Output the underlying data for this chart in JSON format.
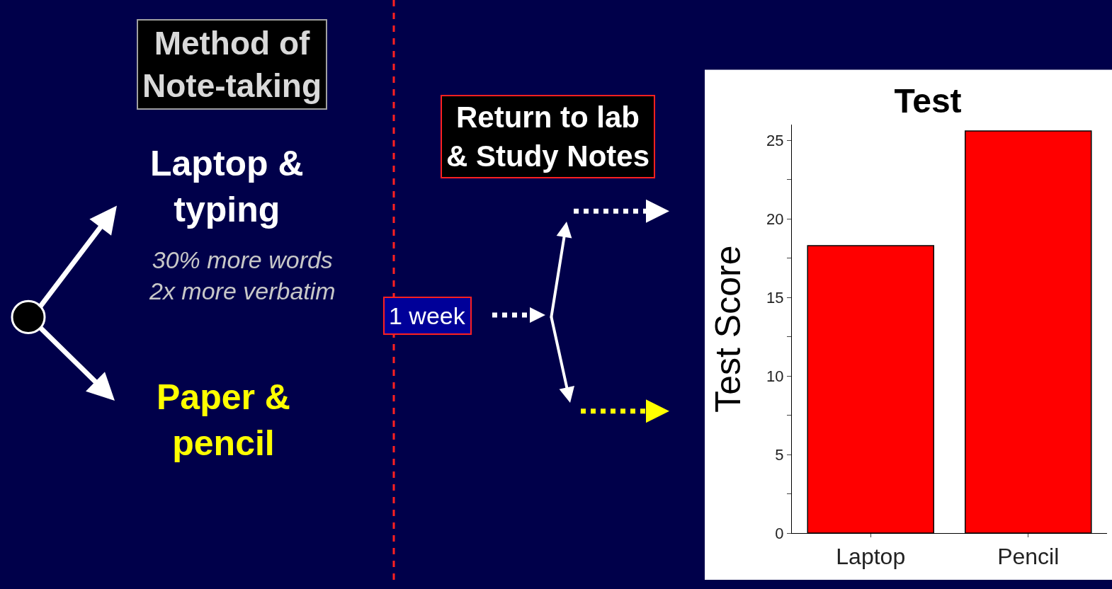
{
  "chart_data": {
    "type": "bar",
    "title": "Test",
    "ylabel": "Test Score",
    "categories": [
      "Laptop",
      "Pencil"
    ],
    "values": [
      18.3,
      25.6
    ],
    "color": "#ff0000",
    "ylim": [
      0,
      26
    ],
    "yticks": [
      0,
      {
        "value": 2.5,
        "label": null
      },
      5,
      {
        "value": 7.5,
        "label": null
      },
      10,
      {
        "value": 12.5,
        "label": null
      },
      15,
      {
        "value": 17.5,
        "label": null
      },
      20,
      {
        "value": 22.5,
        "label": null
      },
      25
    ],
    "annotations": [
      "Method of\nNote-taking",
      "Laptop &\ntyping",
      "30% more words\n2x more verbatim",
      "Paper &\npencil",
      "1 week",
      "Return to lab\n& Study Notes"
    ]
  }
}
